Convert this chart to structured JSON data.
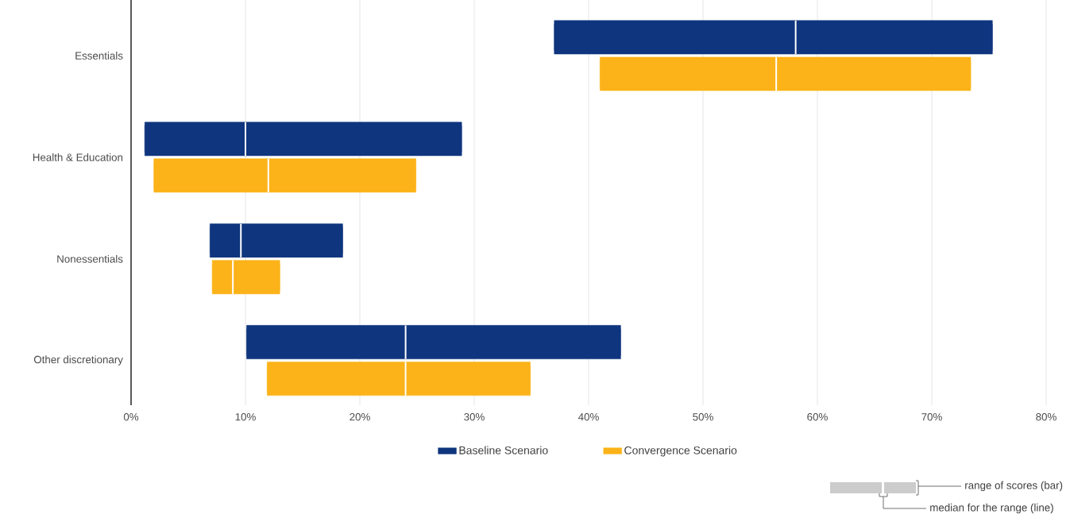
{
  "chart_data": {
    "type": "box",
    "orientation": "horizontal",
    "categories": [
      "Essentials",
      "Health & Education",
      "Nonessentials",
      "Other discretionary"
    ],
    "series": [
      {
        "name": "Baseline Scenario",
        "color": "#0f357e",
        "boxes": [
          {
            "low": 37.0,
            "q1": 37.0,
            "median": 58.1,
            "q3": 75.3,
            "high": 75.3
          },
          {
            "low": 1.2,
            "q1": 1.2,
            "median": 10.0,
            "q3": 28.9,
            "high": 28.9
          },
          {
            "low": 6.9,
            "q1": 6.9,
            "median": 9.6,
            "q3": 18.5,
            "high": 18.5
          },
          {
            "low": 10.1,
            "q1": 10.1,
            "median": 24.0,
            "q3": 42.8,
            "high": 42.8
          }
        ]
      },
      {
        "name": "Convergence Scenario",
        "color": "#fcb319",
        "boxes": [
          {
            "low": 41.0,
            "q1": 41.0,
            "median": 56.4,
            "q3": 73.4,
            "high": 73.4
          },
          {
            "low": 2.0,
            "q1": 2.0,
            "median": 12.0,
            "q3": 24.9,
            "high": 24.9
          },
          {
            "low": 7.1,
            "q1": 7.1,
            "median": 8.9,
            "q3": 13.0,
            "high": 13.0
          },
          {
            "low": 11.9,
            "q1": 11.9,
            "median": 24.0,
            "q3": 34.9,
            "high": 34.9
          }
        ]
      }
    ],
    "xlim": [
      0,
      80
    ],
    "xticks": [
      {
        "value": 0,
        "label": "0%"
      },
      {
        "value": 10,
        "label": "10%"
      },
      {
        "value": 20,
        "label": "20%"
      },
      {
        "value": 30,
        "label": "30%"
      },
      {
        "value": 40,
        "label": "40%"
      },
      {
        "value": 50,
        "label": "50%"
      },
      {
        "value": 60,
        "label": "60%"
      },
      {
        "value": 70,
        "label": "70%"
      },
      {
        "value": 80,
        "label": "80%"
      }
    ],
    "grid": "x",
    "legend": "bottom",
    "annotations": [
      "range of scores (bar)",
      "median for the range (line)"
    ]
  }
}
